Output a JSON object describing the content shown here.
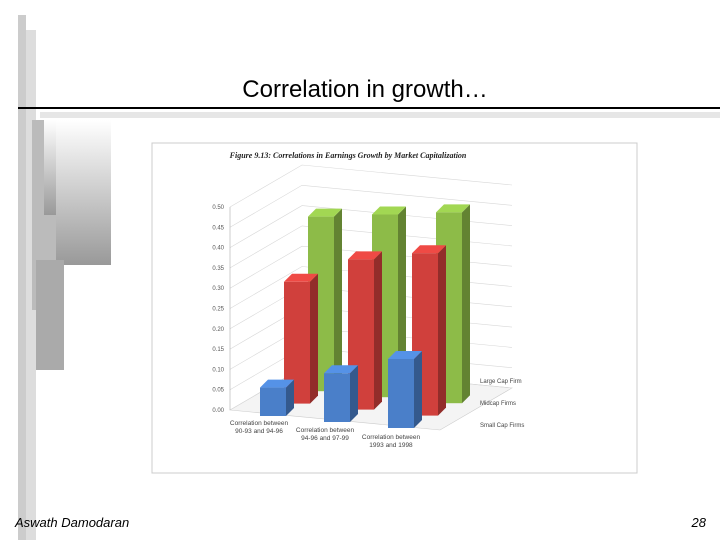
{
  "slide": {
    "title": "Correlation in growth…",
    "footer": "Aswath Damodaran",
    "page_number": "28"
  },
  "chart_data": {
    "type": "bar3d",
    "title": "Figure 9.13: Correlations in Earnings Growth by Market Capitalization",
    "categories": [
      "Correlation between 90-93 and 94-96",
      "Correlation between 94-96 and 97-99",
      "Correlation between 1993 and 1998"
    ],
    "series": [
      {
        "name": "Small Cap Firms",
        "color": "#4a7fc9",
        "values": [
          0.07,
          0.12,
          0.17
        ]
      },
      {
        "name": "Midcap Firms",
        "color": "#d0403c",
        "values": [
          0.3,
          0.37,
          0.4
        ]
      },
      {
        "name": "Large Cap Firm",
        "color": "#8dbb48",
        "values": [
          0.43,
          0.45,
          0.47
        ]
      }
    ],
    "ylim": [
      0,
      0.5
    ],
    "yticks": [
      {
        "value": 0,
        "label": "0.00"
      },
      {
        "value": 0.05,
        "label": "0.05"
      },
      {
        "value": 0.1,
        "label": "0.10"
      },
      {
        "value": 0.15,
        "label": "0.15"
      },
      {
        "value": 0.2,
        "label": "0.20"
      },
      {
        "value": 0.25,
        "label": "0.25"
      },
      {
        "value": 0.3,
        "label": "0.30"
      },
      {
        "value": 0.35,
        "label": "0.35"
      },
      {
        "value": 0.4,
        "label": "0.40"
      },
      {
        "value": 0.45,
        "label": "0.45"
      },
      {
        "value": 0.5,
        "label": "0.50"
      }
    ],
    "grid": true
  }
}
